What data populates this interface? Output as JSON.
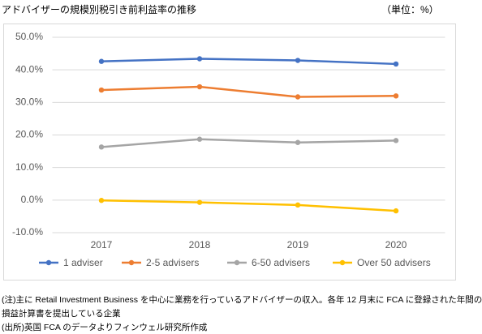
{
  "chart_data": {
    "type": "line",
    "title": "アドバイザーの規模別税引き前利益率の推移",
    "unit_label": "（単位：%）",
    "categories": [
      "2017",
      "2018",
      "2019",
      "2020"
    ],
    "series": [
      {
        "name": "1 adviser",
        "color": "#4472c4",
        "values": [
          42.6,
          43.4,
          42.9,
          41.8
        ]
      },
      {
        "name": "2-5 advisers",
        "color": "#ed7d31",
        "values": [
          33.8,
          34.8,
          31.7,
          32.0
        ]
      },
      {
        "name": "6-50 advisers",
        "color": "#a5a5a5",
        "values": [
          16.3,
          18.7,
          17.7,
          18.3
        ]
      },
      {
        "name": "Over 50 advisers",
        "color": "#ffc000",
        "values": [
          -0.1,
          -0.7,
          -1.5,
          -3.3
        ]
      }
    ],
    "ylim": [
      -10,
      50
    ],
    "yticks": [
      {
        "value": -10,
        "label": "-10.0%"
      },
      {
        "value": 0,
        "label": "0.0%"
      },
      {
        "value": 10,
        "label": "10.0%"
      },
      {
        "value": 20,
        "label": "20.0%"
      },
      {
        "value": 30,
        "label": "30.0%"
      },
      {
        "value": 40,
        "label": "40.0%"
      },
      {
        "value": 50,
        "label": "50.0%"
      }
    ],
    "grid": true,
    "legend": "bottom",
    "notes": [
      "(注)主に Retail Investment Business を中心に業務を行っているアドバイザーの収入。各年 12 月末に FCA に登録された年間の",
      "損益計算書を提出している企業",
      "(出所)英国 FCA のデータよりフィンウェル研究所作成"
    ]
  }
}
